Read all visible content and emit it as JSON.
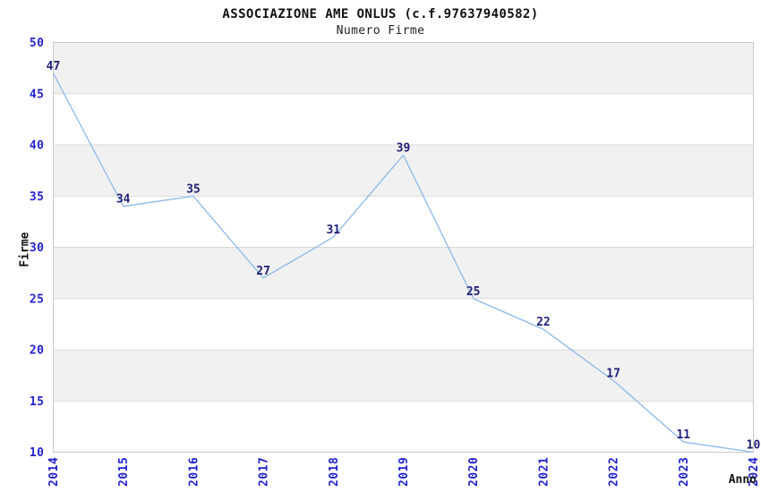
{
  "chart_data": {
    "type": "line",
    "title": "ASSOCIAZIONE AME ONLUS (c.f.97637940582)",
    "subtitle": "Numero Firme",
    "xlabel": "Anno",
    "ylabel": "Firme",
    "categories": [
      "2014",
      "2015",
      "2016",
      "2017",
      "2018",
      "2019",
      "2020",
      "2021",
      "2022",
      "2023",
      "2024"
    ],
    "series": [
      {
        "name": "Numero Firme",
        "values": [
          47,
          34,
          35,
          27,
          31,
          39,
          25,
          22,
          17,
          11,
          10
        ]
      }
    ],
    "ylim": [
      10,
      50
    ],
    "yticks": [
      50,
      45,
      40,
      35,
      30,
      25,
      20,
      15,
      10
    ],
    "grid": "alternating-horizontal-bands",
    "legend_position": "none",
    "point_labels": true,
    "x_tick_rotation": -90,
    "colors": {
      "line": "#8db9e9",
      "tick_label": "#2222cc",
      "point_label": "#1f1f78",
      "band_gray": "#f1f1f1",
      "band_white": "#ffffff",
      "grid_line": "#d9d9d9",
      "plot_border": "#c9c9c9",
      "text": "#111111"
    }
  }
}
